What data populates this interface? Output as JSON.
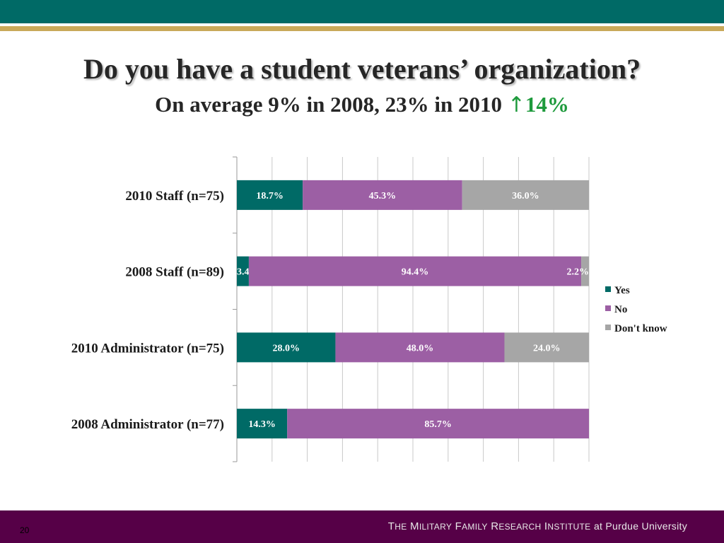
{
  "slide": {
    "title": "Do you have a student veterans’ organization?",
    "subtitle_text": "On average 9% in 2008, 23% in 2010",
    "subtitle_arrow": "↑",
    "subtitle_delta": "14%",
    "page_number": "20",
    "footer": {
      "part1_initial": "T",
      "part1_rest": "HE",
      "part2_initial": "M",
      "part2_rest": "ILITARY",
      "part3_initial": "F",
      "part3_rest": "AMILY",
      "part4_initial": "R",
      "part4_rest": "ESEARCH",
      "part5_initial": "I",
      "part5_rest": "NSTITUTE",
      "part6": "at Purdue University"
    }
  },
  "colors": {
    "yes": "#006a66",
    "no": "#9c5fa4",
    "dont_know": "#a6a6a6",
    "header": "#006a66",
    "gold": "#c9a95a",
    "footer": "#560047"
  },
  "chart_data": {
    "type": "bar",
    "orientation": "horizontal",
    "stacked": "percent",
    "categories": [
      "2010 Staff (n=75)",
      "2008 Staff (n=89)",
      "2010 Administrator (n=75)",
      "2008 Administrator (n=77)"
    ],
    "series": [
      {
        "name": "Yes",
        "values": [
          18.7,
          3.4,
          28.0,
          14.3
        ],
        "labels": [
          "18.7%",
          "3.4%",
          "28.0%",
          "14.3%"
        ]
      },
      {
        "name": "No",
        "values": [
          45.3,
          94.4,
          48.0,
          85.7
        ],
        "labels": [
          "45.3%",
          "94.4%",
          "48.0%",
          "85.7%"
        ]
      },
      {
        "name": "Don't know",
        "values": [
          36.0,
          2.2,
          24.0,
          0
        ],
        "labels": [
          "36.0%",
          "2.2%",
          "24.0%",
          ""
        ]
      }
    ],
    "xlim": [
      0,
      100
    ],
    "grid": true,
    "legend": "right"
  }
}
